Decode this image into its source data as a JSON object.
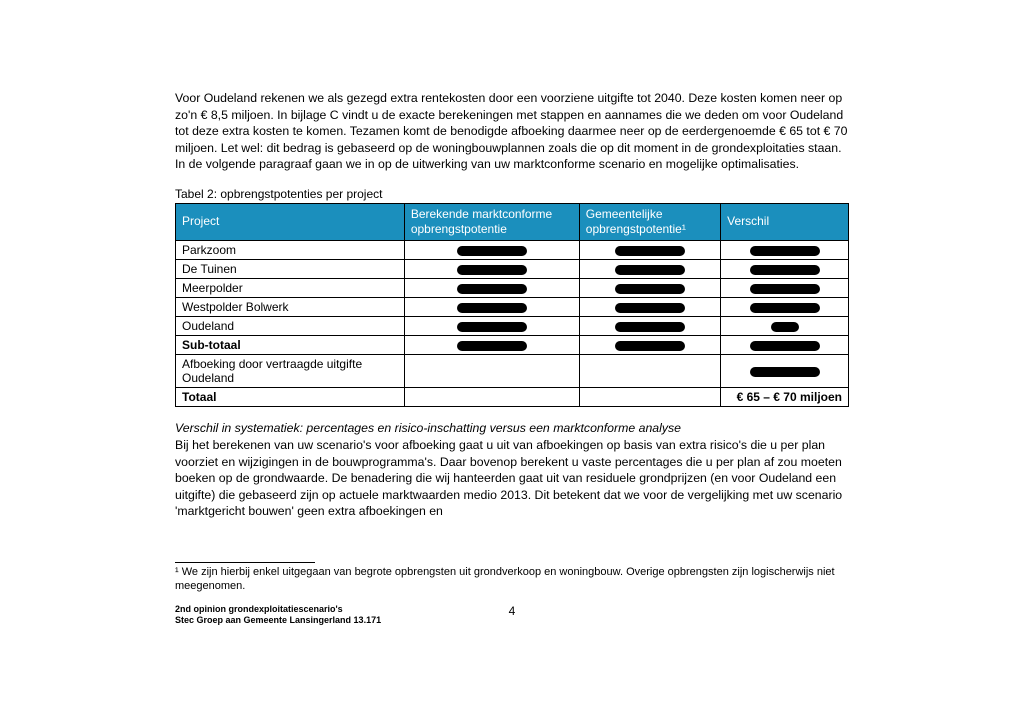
{
  "para1": "Voor Oudeland rekenen we als gezegd extra rentekosten door een voorziene uitgifte tot 2040. Deze kosten komen neer op zo'n € 8,5 miljoen. In bijlage C vindt u de exacte berekeningen met stappen en aannames die we deden om voor Oudeland tot deze extra kosten te komen. Tezamen komt de benodigde afboeking daarmee neer op de eerdergenoemde € 65 tot € 70 miljoen. Let wel: dit bedrag is gebaseerd op de woningbouwplannen zoals die op dit moment in de grondexploitaties staan. In de volgende paragraaf gaan we in op de uitwerking van uw marktconforme scenario en mogelijke optimalisaties.",
  "table_caption": "Tabel 2: opbrengstpotenties per project",
  "table": {
    "header_bg": "#1b8fbd",
    "header_fg": "#ffffff",
    "columns": [
      "Project",
      "Berekende marktconforme opbrengstpotentie",
      "Gemeentelijke opbrengstpotentie¹",
      "Verschil"
    ],
    "rows": [
      {
        "label": "Parkzoom",
        "c1_redacted_w": 70,
        "c2_redacted_w": 70,
        "c3_redacted_w": 70,
        "bold": false
      },
      {
        "label": "De Tuinen",
        "c1_redacted_w": 70,
        "c2_redacted_w": 70,
        "c3_redacted_w": 70,
        "bold": false
      },
      {
        "label": "Meerpolder",
        "c1_redacted_w": 70,
        "c2_redacted_w": 70,
        "c3_redacted_w": 70,
        "bold": false
      },
      {
        "label": "Westpolder Bolwerk",
        "c1_redacted_w": 70,
        "c2_redacted_w": 70,
        "c3_redacted_w": 70,
        "bold": false
      },
      {
        "label": "Oudeland",
        "c1_redacted_w": 70,
        "c2_redacted_w": 70,
        "c3_redacted_w": 28,
        "bold": false
      },
      {
        "label": "Sub-totaal",
        "c1_redacted_w": 70,
        "c2_redacted_w": 70,
        "c3_redacted_w": 70,
        "bold": true
      },
      {
        "label": "Afboeking door vertraagde uitgifte Oudeland",
        "c1_redacted_w": 0,
        "c2_redacted_w": 0,
        "c3_redacted_w": 70,
        "bold": false,
        "tall": true
      },
      {
        "label": "Totaal",
        "c1_redacted_w": 0,
        "c2_redacted_w": 0,
        "c3_text": "€ 65 – € 70 miljoen",
        "bold": true
      }
    ]
  },
  "subheading": "Verschil in systematiek: percentages en risico-inschatting versus een marktconforme analyse",
  "para2": "Bij het berekenen van uw scenario's voor afboeking gaat u uit van afboekingen op basis van extra risico's die u per plan voorziet en wijzigingen in de bouwprogramma's. Daar bovenop berekent u vaste percentages die u per plan af zou moeten boeken op de grondwaarde. De benadering die wij hanteerden gaat uit van residuele grondprijzen (en voor Oudeland een uitgifte) die gebaseerd zijn op actuele marktwaarden medio 2013. Dit betekent dat we voor de vergelijking met uw scenario 'marktgericht bouwen' geen extra afboekingen en",
  "footnote": "¹ We zijn hierbij enkel uitgegaan van begrote opbrengsten uit grondverkoop en woningbouw. Overige opbrengsten zijn logischerwijs niet meegenomen.",
  "footer_line1": "2nd opinion grondexploitatiescenario's",
  "footer_line2": "Stec Groep aan Gemeente Lansingerland 13.171",
  "page_number": "4"
}
